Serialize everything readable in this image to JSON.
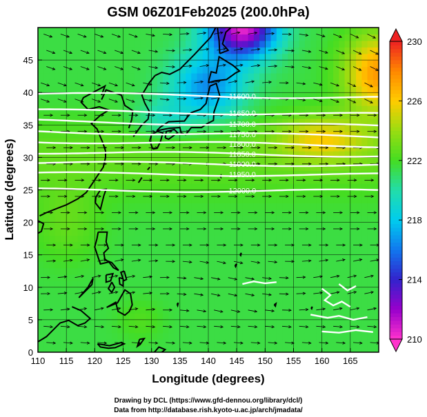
{
  "chart_data": {
    "type": "heatmap",
    "title": "GSM 06Z01Feb2025 (200.0hPa)",
    "xlabel": "Longitude (degrees)",
    "ylabel": "Latitude  (degrees)",
    "xlim": [
      110,
      170
    ],
    "ylim": [
      0,
      50
    ],
    "xticks": [
      "110",
      "115",
      "120",
      "125",
      "130",
      "135",
      "140",
      "145",
      "150",
      "155",
      "160",
      "165"
    ],
    "yticks": [
      "0",
      "5",
      "10",
      "15",
      "20",
      "25",
      "30",
      "35",
      "40",
      "45"
    ],
    "colorbar": {
      "range": [
        210,
        230
      ],
      "ticks": [
        "230",
        "226",
        "222",
        "218",
        "214",
        "210"
      ],
      "stops": [
        {
          "v": 210,
          "c": "#ff33cc"
        },
        {
          "v": 212,
          "c": "#9900cc"
        },
        {
          "v": 214,
          "c": "#3322cc"
        },
        {
          "v": 216,
          "c": "#1177ee"
        },
        {
          "v": 218,
          "c": "#00ccee"
        },
        {
          "v": 220,
          "c": "#22ddaa"
        },
        {
          "v": 222,
          "c": "#44dd22"
        },
        {
          "v": 224,
          "c": "#99dd11"
        },
        {
          "v": 226,
          "c": "#ffcc00"
        },
        {
          "v": 228,
          "c": "#ff8800"
        },
        {
          "v": 230,
          "c": "#ee2222"
        }
      ]
    },
    "temperature_field_features": [
      {
        "lon": 146,
        "lat": 50,
        "value": 210
      },
      {
        "lon": 140,
        "lat": 40,
        "value": 217
      },
      {
        "lon": 168,
        "lat": 42,
        "value": 227
      },
      {
        "lon": 160,
        "lat": 33,
        "value": 225
      },
      {
        "lon": 130,
        "lat": 10,
        "value": 222
      }
    ],
    "geopotential_contours": [
      {
        "label": "11600.0",
        "lat_start": 39.8,
        "lat_end": 39.2
      },
      {
        "label": "11650.0",
        "lat_start": 37.2,
        "lat_end": 36.6
      },
      {
        "label": "11700.0",
        "lat_start": 35.6,
        "lat_end": 34.8
      },
      {
        "label": "11750.0",
        "lat_start": 34.0,
        "lat_end": 33.2
      },
      {
        "label": "11800.0",
        "lat_start": 32.5,
        "lat_end": 31.8
      },
      {
        "label": "11850.0",
        "lat_start": 30.8,
        "lat_end": 30.3
      },
      {
        "label": "11900.0",
        "lat_start": 29.2,
        "lat_end": 28.8
      },
      {
        "label": "11950.0",
        "lat_start": 27.5,
        "lat_end": 27.3
      },
      {
        "label": "12000.0",
        "lat_start": 25.0,
        "lat_end": 24.8
      }
    ],
    "legend": "right",
    "grid": true
  },
  "credits": {
    "line1": "Drawing by DCL (https://www.gfd-dennou.org/library/dcl/)",
    "line2": "Data from http://database.rish.kyoto-u.ac.jp/arch/jmadata/"
  }
}
